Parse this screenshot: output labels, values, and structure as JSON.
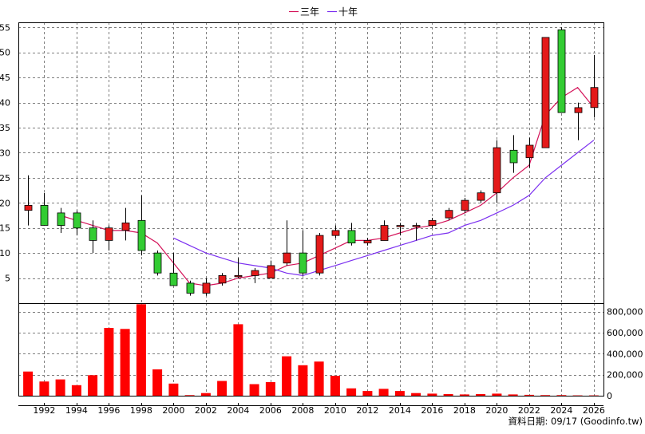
{
  "chart_data": {
    "type": "candlestick",
    "legend": {
      "placement": "top-center",
      "items": [
        {
          "label": "三年",
          "color": "#d4145a"
        },
        {
          "label": "十年",
          "color": "#7b2ff0"
        }
      ]
    },
    "colors": {
      "up": "#e41a1a",
      "down": "#33cc33",
      "volume": "#ff0000",
      "grid": "#7f7f7f",
      "wick": "#000000"
    },
    "grid": true,
    "price_axis": {
      "ylim": [
        0,
        56
      ],
      "ticks": [
        5,
        10,
        15,
        20,
        25,
        30,
        35,
        40,
        45,
        50,
        55
      ]
    },
    "volume_axis": {
      "ylim": [
        0,
        880000
      ],
      "ticks": [
        0,
        200000,
        400000,
        600000,
        800000
      ],
      "tick_labels": [
        "0",
        "200,000",
        "400,000",
        "600,000",
        "800,000"
      ]
    },
    "x_axis": {
      "xlim": [
        1990.4,
        2026.6
      ],
      "ticks": [
        1992,
        1994,
        1996,
        1998,
        2000,
        2002,
        2004,
        2006,
        2008,
        2010,
        2012,
        2014,
        2016,
        2018,
        2020,
        2022,
        2024,
        2026
      ],
      "tick_labels": [
        "1992",
        "1994",
        "1996",
        "1998",
        "2000",
        "2002",
        "2004",
        "2006",
        "2008",
        "2010",
        "2012",
        "2014",
        "2016",
        "2018",
        "2020",
        "2022",
        "2024",
        "2026"
      ]
    },
    "candles": [
      {
        "x": 1991,
        "open": 18.5,
        "high": 25.5,
        "low": 15.5,
        "close": 19.5
      },
      {
        "x": 1992,
        "open": 19.5,
        "high": 22.0,
        "low": 15.5,
        "close": 15.5
      },
      {
        "x": 1993,
        "open": 18.0,
        "high": 19.0,
        "low": 14.0,
        "close": 15.5
      },
      {
        "x": 1994,
        "open": 18.0,
        "high": 18.5,
        "low": 13.5,
        "close": 15.0
      },
      {
        "x": 1995,
        "open": 15.0,
        "high": 16.5,
        "low": 10.0,
        "close": 12.5
      },
      {
        "x": 1996,
        "open": 12.5,
        "high": 15.5,
        "low": 10.5,
        "close": 15.0
      },
      {
        "x": 1997,
        "open": 14.5,
        "high": 19.0,
        "low": 12.5,
        "close": 16.0
      },
      {
        "x": 1998,
        "open": 16.5,
        "high": 21.5,
        "low": 9.5,
        "close": 10.5
      },
      {
        "x": 1999,
        "open": 10.0,
        "high": 10.5,
        "low": 5.5,
        "close": 6.0
      },
      {
        "x": 2000,
        "open": 6.0,
        "high": 10.0,
        "low": 3.5,
        "close": 3.5
      },
      {
        "x": 2001,
        "open": 4.0,
        "high": 4.5,
        "low": 1.5,
        "close": 2.0
      },
      {
        "x": 2002,
        "open": 2.0,
        "high": 5.0,
        "low": 1.5,
        "close": 4.0
      },
      {
        "x": 2003,
        "open": 4.0,
        "high": 6.0,
        "low": 3.5,
        "close": 5.5
      },
      {
        "x": 2004,
        "open": 5.5,
        "high": 9.0,
        "low": 5.0,
        "close": 5.5
      },
      {
        "x": 2005,
        "open": 5.5,
        "high": 7.0,
        "low": 4.0,
        "close": 6.5
      },
      {
        "x": 2006,
        "open": 5.0,
        "high": 8.5,
        "low": 5.0,
        "close": 7.5
      },
      {
        "x": 2007,
        "open": 8.0,
        "high": 16.5,
        "low": 7.5,
        "close": 10.0
      },
      {
        "x": 2008,
        "open": 10.0,
        "high": 14.5,
        "low": 5.5,
        "close": 6.0
      },
      {
        "x": 2009,
        "open": 6.0,
        "high": 14.0,
        "low": 5.5,
        "close": 13.5
      },
      {
        "x": 2010,
        "open": 13.5,
        "high": 15.5,
        "low": 13.0,
        "close": 14.5
      },
      {
        "x": 2011,
        "open": 14.5,
        "high": 16.0,
        "low": 11.5,
        "close": 12.0
      },
      {
        "x": 2012,
        "open": 12.0,
        "high": 13.0,
        "low": 11.5,
        "close": 12.5
      },
      {
        "x": 2013,
        "open": 12.5,
        "high": 16.5,
        "low": 12.5,
        "close": 15.5
      },
      {
        "x": 2014,
        "open": 15.5,
        "high": 16.0,
        "low": 13.5,
        "close": 15.5
      },
      {
        "x": 2015,
        "open": 15.5,
        "high": 16.0,
        "low": 12.5,
        "close": 15.5
      },
      {
        "x": 2016,
        "open": 15.5,
        "high": 17.0,
        "low": 15.0,
        "close": 16.5
      },
      {
        "x": 2017,
        "open": 17.0,
        "high": 19.0,
        "low": 16.5,
        "close": 18.5
      },
      {
        "x": 2018,
        "open": 18.5,
        "high": 21.0,
        "low": 18.0,
        "close": 20.5
      },
      {
        "x": 2019,
        "open": 20.5,
        "high": 22.5,
        "low": 20.0,
        "close": 22.0
      },
      {
        "x": 2020,
        "open": 22.0,
        "high": 32.5,
        "low": 20.0,
        "close": 31.0
      },
      {
        "x": 2021,
        "open": 30.5,
        "high": 33.5,
        "low": 26.0,
        "close": 28.0
      },
      {
        "x": 2022,
        "open": 29.0,
        "high": 33.0,
        "low": 27.0,
        "close": 31.5
      },
      {
        "x": 2023,
        "open": 31.0,
        "high": 53.0,
        "low": 31.0,
        "close": 53.0
      },
      {
        "x": 2024,
        "open": 54.5,
        "high": 55.0,
        "low": 38.0,
        "close": 38.0
      },
      {
        "x": 2025,
        "open": 38.0,
        "high": 40.0,
        "low": 32.5,
        "close": 39.0
      },
      {
        "x": 2026,
        "open": 39.0,
        "high": 49.5,
        "low": 37.0,
        "close": 43.0
      }
    ],
    "series": [
      {
        "name": "三年",
        "color": "#d4145a",
        "x": [
          1993,
          1994,
          1995,
          1996,
          1997,
          1998,
          1999,
          2000,
          2001,
          2002,
          2003,
          2004,
          2005,
          2006,
          2007,
          2008,
          2009,
          2010,
          2011,
          2012,
          2013,
          2014,
          2015,
          2016,
          2017,
          2018,
          2019,
          2020,
          2021,
          2022,
          2023,
          2024,
          2025,
          2026
        ],
        "values": [
          17.5,
          16.5,
          15.5,
          14.5,
          14.5,
          14.0,
          12.0,
          8.0,
          4.0,
          3.5,
          4.0,
          5.0,
          5.5,
          6.0,
          7.5,
          8.0,
          9.5,
          11.0,
          12.5,
          12.5,
          13.0,
          14.0,
          15.0,
          15.5,
          16.5,
          18.0,
          19.5,
          22.0,
          25.0,
          27.5,
          37.5,
          41.0,
          43.0,
          39.0
        ]
      },
      {
        "name": "十年",
        "color": "#7b2ff0",
        "x": [
          2000,
          2001,
          2002,
          2003,
          2004,
          2005,
          2006,
          2007,
          2008,
          2009,
          2010,
          2011,
          2012,
          2013,
          2014,
          2015,
          2016,
          2017,
          2018,
          2019,
          2020,
          2021,
          2022,
          2023,
          2024,
          2025,
          2026
        ],
        "values": [
          13.0,
          11.5,
          10.0,
          9.0,
          8.0,
          7.5,
          7.0,
          6.0,
          5.5,
          6.5,
          7.5,
          8.5,
          9.5,
          10.5,
          11.5,
          12.5,
          13.5,
          14.0,
          15.5,
          16.5,
          18.0,
          19.5,
          21.5,
          25.0,
          27.5,
          30.0,
          32.5
        ]
      }
    ],
    "volume": {
      "x": [
        1991,
        1992,
        1993,
        1994,
        1995,
        1996,
        1997,
        1998,
        1999,
        2000,
        2001,
        2002,
        2003,
        2004,
        2005,
        2006,
        2007,
        2008,
        2009,
        2010,
        2011,
        2012,
        2013,
        2014,
        2015,
        2016,
        2017,
        2018,
        2019,
        2020,
        2021,
        2022,
        2023,
        2024,
        2025,
        2026
      ],
      "values": [
        230000,
        135000,
        155000,
        100000,
        195000,
        645000,
        635000,
        870000,
        250000,
        115000,
        5000,
        25000,
        140000,
        680000,
        110000,
        130000,
        375000,
        290000,
        325000,
        190000,
        70000,
        45000,
        65000,
        45000,
        25000,
        20000,
        15000,
        12000,
        15000,
        20000,
        12000,
        8000,
        5000,
        5000,
        3000,
        3000
      ]
    },
    "footer_text": "資料日期: 09/17  (Goodinfo.tw)"
  }
}
